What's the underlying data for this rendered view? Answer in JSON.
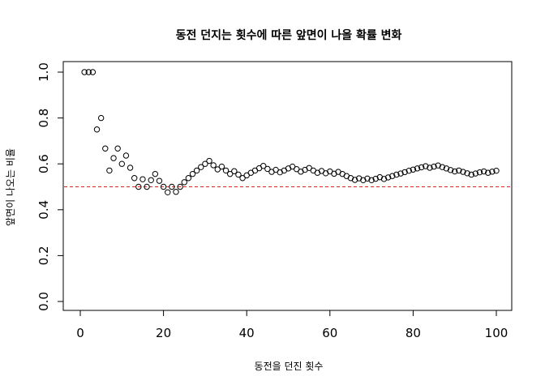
{
  "chart_data": {
    "type": "scatter",
    "title": "동전 던지는 횟수에 따른 앞면이 나올 확률 변화",
    "xlabel": "동전을 던진 횟수",
    "ylabel": "앞면이 나오는 비율",
    "xlim": [
      0,
      100
    ],
    "ylim": [
      0.0,
      1.0
    ],
    "x_ticks": [
      "0",
      "20",
      "40",
      "60",
      "80",
      "100"
    ],
    "y_ticks": [
      "0.0",
      "0.2",
      "0.4",
      "0.6",
      "0.8",
      "1.0"
    ],
    "grid": false,
    "reference_line": {
      "y": 0.5,
      "color": "#dd2222",
      "style": "dashed"
    },
    "point_style": "open-circle",
    "x": [
      1,
      2,
      3,
      4,
      5,
      6,
      7,
      8,
      9,
      10,
      11,
      12,
      13,
      14,
      15,
      16,
      17,
      18,
      19,
      20,
      21,
      22,
      23,
      24,
      25,
      26,
      27,
      28,
      29,
      30,
      31,
      32,
      33,
      34,
      35,
      36,
      37,
      38,
      39,
      40,
      41,
      42,
      43,
      44,
      45,
      46,
      47,
      48,
      49,
      50,
      51,
      52,
      53,
      54,
      55,
      56,
      57,
      58,
      59,
      60,
      61,
      62,
      63,
      64,
      65,
      66,
      67,
      68,
      69,
      70,
      71,
      72,
      73,
      74,
      75,
      76,
      77,
      78,
      79,
      80,
      81,
      82,
      83,
      84,
      85,
      86,
      87,
      88,
      89,
      90,
      91,
      92,
      93,
      94,
      95,
      96,
      97,
      98,
      99,
      100
    ],
    "y": [
      1.0,
      1.0,
      1.0,
      0.75,
      0.8,
      0.667,
      0.571,
      0.625,
      0.667,
      0.6,
      0.636,
      0.583,
      0.538,
      0.5,
      0.533,
      0.5,
      0.529,
      0.556,
      0.526,
      0.5,
      0.476,
      0.5,
      0.478,
      0.5,
      0.52,
      0.538,
      0.556,
      0.571,
      0.586,
      0.6,
      0.613,
      0.594,
      0.576,
      0.588,
      0.571,
      0.556,
      0.568,
      0.553,
      0.538,
      0.55,
      0.561,
      0.571,
      0.581,
      0.591,
      0.578,
      0.565,
      0.574,
      0.563,
      0.571,
      0.58,
      0.588,
      0.577,
      0.566,
      0.574,
      0.582,
      0.571,
      0.561,
      0.569,
      0.559,
      0.567,
      0.557,
      0.565,
      0.556,
      0.547,
      0.538,
      0.53,
      0.537,
      0.529,
      0.536,
      0.529,
      0.535,
      0.542,
      0.534,
      0.541,
      0.547,
      0.553,
      0.558,
      0.564,
      0.57,
      0.575,
      0.58,
      0.585,
      0.59,
      0.583,
      0.588,
      0.593,
      0.586,
      0.58,
      0.573,
      0.567,
      0.571,
      0.565,
      0.559,
      0.553,
      0.558,
      0.563,
      0.567,
      0.561,
      0.566,
      0.57
    ]
  }
}
